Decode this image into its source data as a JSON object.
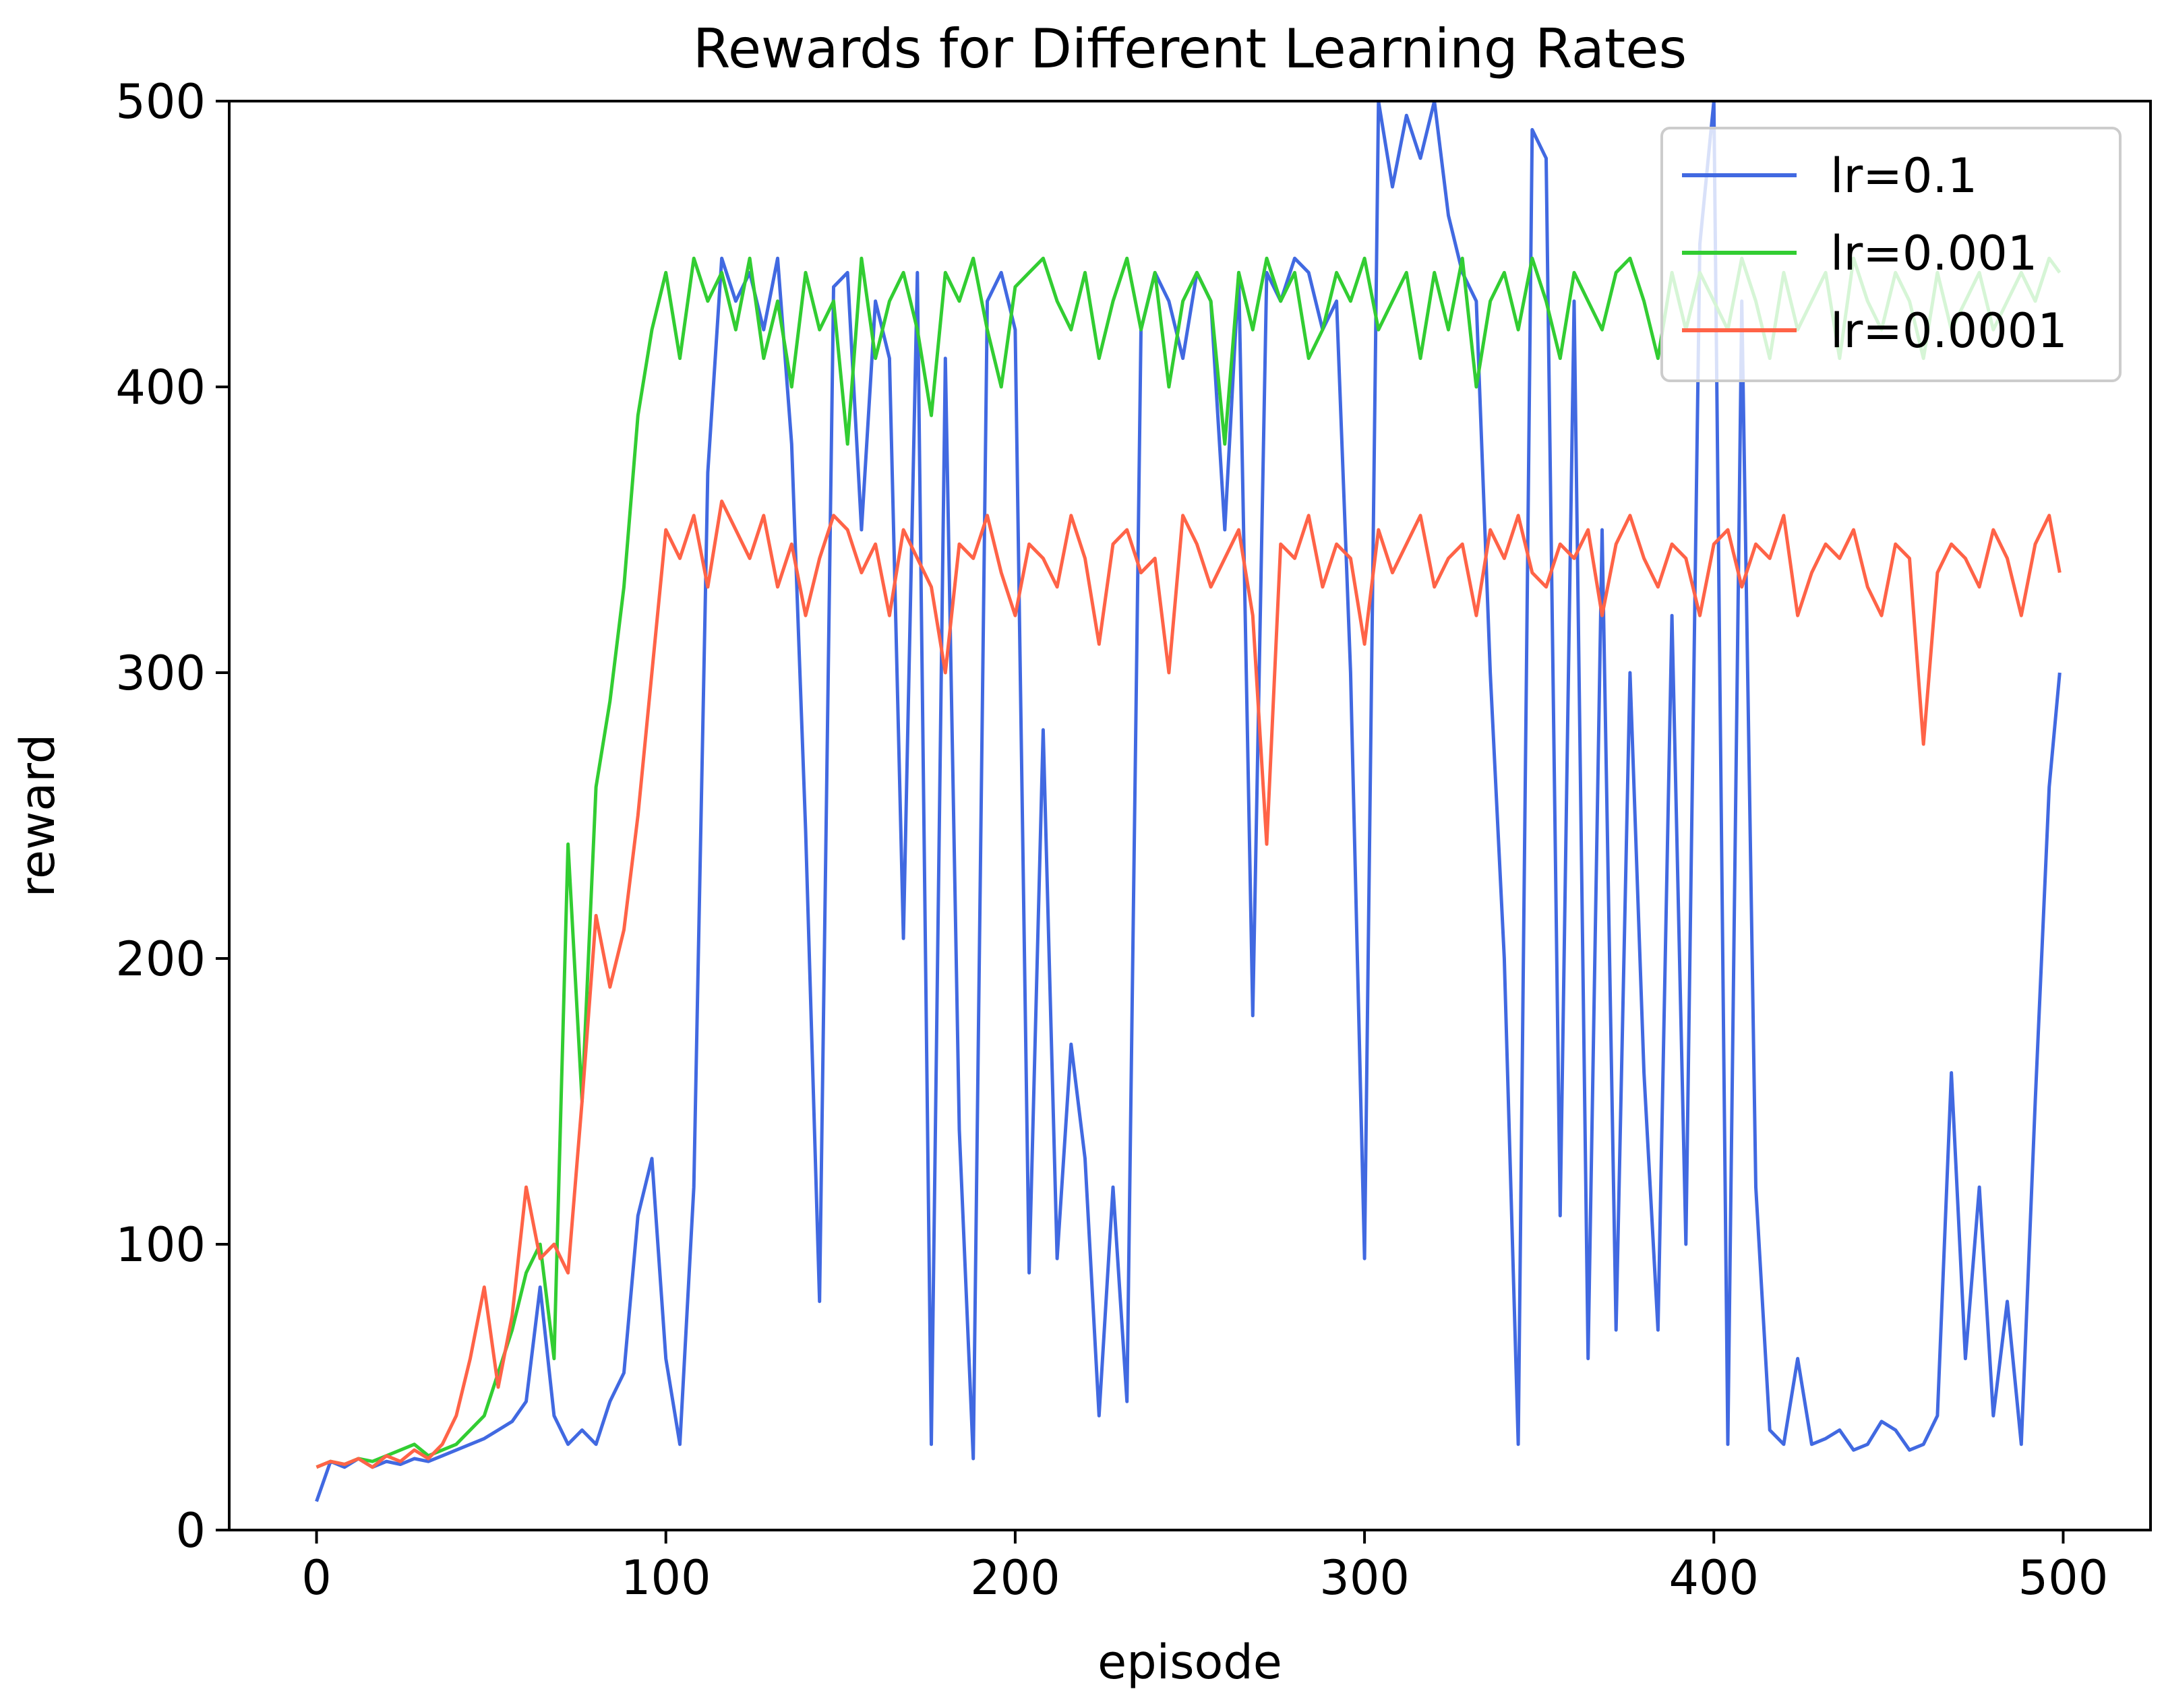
{
  "chart_data": {
    "type": "line",
    "title": "Rewards for Different Learning Rates",
    "xlabel": "episode",
    "ylabel": "reward",
    "xlim": [
      -25,
      525
    ],
    "ylim": [
      0,
      500
    ],
    "xticks": [
      "0",
      "100",
      "200",
      "300",
      "400",
      "500"
    ],
    "yticks": [
      "0",
      "100",
      "200",
      "300",
      "400",
      "500"
    ],
    "grid": false,
    "legend_position": "top-right",
    "series": [
      {
        "name": "lr=0.1",
        "color": "#4169E1",
        "x": [
          0,
          4,
          8,
          12,
          16,
          20,
          24,
          28,
          32,
          36,
          40,
          44,
          48,
          52,
          56,
          60,
          64,
          68,
          72,
          76,
          80,
          84,
          88,
          92,
          96,
          100,
          104,
          108,
          112,
          116,
          120,
          124,
          128,
          132,
          136,
          140,
          144,
          148,
          152,
          156,
          160,
          164,
          168,
          172,
          176,
          180,
          184,
          188,
          192,
          196,
          200,
          204,
          208,
          212,
          216,
          220,
          224,
          228,
          232,
          236,
          240,
          244,
          248,
          252,
          256,
          260,
          264,
          268,
          272,
          276,
          280,
          284,
          288,
          292,
          296,
          300,
          304,
          308,
          312,
          316,
          320,
          324,
          328,
          332,
          336,
          340,
          344,
          348,
          352,
          356,
          360,
          364,
          368,
          372,
          376,
          380,
          384,
          388,
          392,
          396,
          400,
          404,
          408,
          412,
          416,
          420,
          424,
          428,
          432,
          436,
          440,
          444,
          448,
          452,
          456,
          460,
          464,
          468,
          472,
          476,
          480,
          484,
          488,
          492,
          496,
          499
        ],
        "y": [
          10,
          24,
          22,
          25,
          22,
          24,
          23,
          25,
          24,
          26,
          28,
          30,
          32,
          35,
          38,
          45,
          85,
          40,
          30,
          35,
          30,
          45,
          55,
          110,
          130,
          60,
          30,
          120,
          370,
          445,
          430,
          440,
          420,
          445,
          380,
          245,
          80,
          435,
          440,
          350,
          430,
          410,
          207,
          440,
          30,
          410,
          140,
          25,
          430,
          440,
          420,
          90,
          280,
          95,
          170,
          130,
          40,
          120,
          45,
          420,
          440,
          430,
          410,
          440,
          430,
          350,
          440,
          180,
          440,
          430,
          445,
          440,
          420,
          430,
          300,
          95,
          500,
          470,
          495,
          480,
          500,
          460,
          440,
          430,
          300,
          200,
          30,
          490,
          480,
          110,
          430,
          60,
          350,
          70,
          300,
          160,
          70,
          320,
          100,
          450,
          500,
          30,
          430,
          120,
          35,
          30,
          60,
          30,
          32,
          35,
          28,
          30,
          38,
          35,
          28,
          30,
          40,
          160,
          60,
          120,
          40,
          80,
          30,
          150,
          260,
          300
        ]
      },
      {
        "name": "lr=0.001",
        "color": "#32CD32",
        "x": [
          0,
          4,
          8,
          12,
          16,
          20,
          24,
          28,
          32,
          36,
          40,
          44,
          48,
          52,
          56,
          60,
          64,
          68,
          72,
          76,
          80,
          84,
          88,
          92,
          96,
          100,
          104,
          108,
          112,
          116,
          120,
          124,
          128,
          132,
          136,
          140,
          144,
          148,
          152,
          156,
          160,
          164,
          168,
          172,
          176,
          180,
          184,
          188,
          192,
          196,
          200,
          204,
          208,
          212,
          216,
          220,
          224,
          228,
          232,
          236,
          240,
          244,
          248,
          252,
          256,
          260,
          264,
          268,
          272,
          276,
          280,
          284,
          288,
          292,
          296,
          300,
          304,
          308,
          312,
          316,
          320,
          324,
          328,
          332,
          336,
          340,
          344,
          348,
          352,
          356,
          360,
          364,
          368,
          372,
          376,
          380,
          384,
          388,
          392,
          396,
          400,
          404,
          408,
          412,
          416,
          420,
          424,
          428,
          432,
          436,
          440,
          444,
          448,
          452,
          456,
          460,
          464,
          468,
          472,
          476,
          480,
          484,
          488,
          492,
          496,
          499
        ],
        "y": [
          22,
          24,
          23,
          25,
          24,
          26,
          28,
          30,
          26,
          28,
          30,
          35,
          40,
          55,
          70,
          90,
          100,
          60,
          240,
          150,
          260,
          290,
          330,
          390,
          420,
          440,
          410,
          445,
          430,
          440,
          420,
          445,
          410,
          430,
          400,
          440,
          420,
          430,
          380,
          445,
          410,
          430,
          440,
          420,
          390,
          440,
          430,
          445,
          420,
          400,
          435,
          440,
          445,
          430,
          420,
          440,
          410,
          430,
          445,
          420,
          440,
          400,
          430,
          440,
          430,
          380,
          440,
          420,
          445,
          430,
          440,
          410,
          420,
          440,
          430,
          445,
          420,
          430,
          440,
          410,
          440,
          420,
          445,
          400,
          430,
          440,
          420,
          445,
          430,
          410,
          440,
          430,
          420,
          440,
          445,
          430,
          410,
          440,
          420,
          440,
          430,
          420,
          445,
          430,
          410,
          440,
          420,
          430,
          440,
          410,
          445,
          430,
          420,
          440,
          430,
          410,
          440,
          420,
          430,
          440,
          420,
          430,
          440,
          430,
          445,
          440
        ]
      },
      {
        "name": "lr=0.0001",
        "color": "#FF6347",
        "x": [
          0,
          4,
          8,
          12,
          16,
          20,
          24,
          28,
          32,
          36,
          40,
          44,
          48,
          52,
          56,
          60,
          64,
          68,
          72,
          76,
          80,
          84,
          88,
          92,
          96,
          100,
          104,
          108,
          112,
          116,
          120,
          124,
          128,
          132,
          136,
          140,
          144,
          148,
          152,
          156,
          160,
          164,
          168,
          172,
          176,
          180,
          184,
          188,
          192,
          196,
          200,
          204,
          208,
          212,
          216,
          220,
          224,
          228,
          232,
          236,
          240,
          244,
          248,
          252,
          256,
          260,
          264,
          268,
          272,
          276,
          280,
          284,
          288,
          292,
          296,
          300,
          304,
          308,
          312,
          316,
          320,
          324,
          328,
          332,
          336,
          340,
          344,
          348,
          352,
          356,
          360,
          364,
          368,
          372,
          376,
          380,
          384,
          388,
          392,
          396,
          400,
          404,
          408,
          412,
          416,
          420,
          424,
          428,
          432,
          436,
          440,
          444,
          448,
          452,
          456,
          460,
          464,
          468,
          472,
          476,
          480,
          484,
          488,
          492,
          496,
          499
        ],
        "y": [
          22,
          24,
          23,
          25,
          22,
          26,
          24,
          28,
          25,
          30,
          40,
          60,
          85,
          50,
          75,
          120,
          95,
          100,
          90,
          150,
          215,
          190,
          210,
          250,
          300,
          350,
          340,
          355,
          330,
          360,
          350,
          340,
          355,
          330,
          345,
          320,
          340,
          355,
          350,
          335,
          345,
          320,
          350,
          340,
          330,
          300,
          345,
          340,
          355,
          335,
          320,
          345,
          340,
          330,
          355,
          340,
          310,
          345,
          350,
          335,
          340,
          300,
          355,
          345,
          330,
          340,
          350,
          320,
          240,
          345,
          340,
          355,
          330,
          345,
          340,
          310,
          350,
          335,
          345,
          355,
          330,
          340,
          345,
          320,
          350,
          340,
          355,
          335,
          330,
          345,
          340,
          350,
          320,
          345,
          355,
          340,
          330,
          345,
          340,
          320,
          345,
          350,
          330,
          345,
          340,
          355,
          320,
          335,
          345,
          340,
          350,
          330,
          320,
          345,
          340,
          275,
          335,
          345,
          340,
          330,
          350,
          340,
          320,
          345,
          355,
          335
        ]
      }
    ]
  }
}
